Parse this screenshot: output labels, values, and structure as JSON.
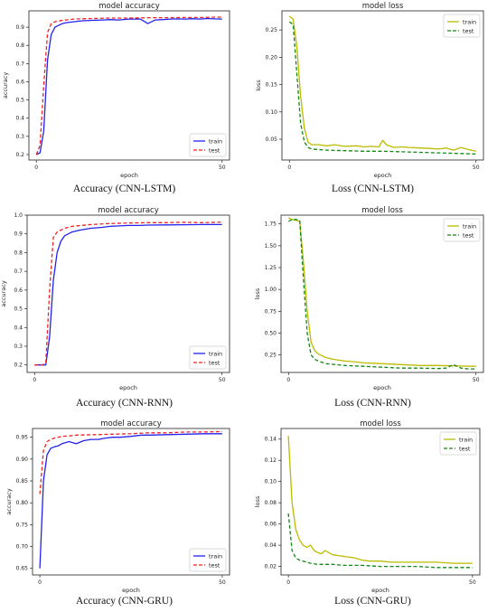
{
  "colors": {
    "train_acc": "#2222ee",
    "test_acc": "#ee2222",
    "train_loss": "#bbbb00",
    "test_loss": "#118811"
  },
  "chart_data": [
    {
      "type": "line",
      "title": "model accuracy",
      "xlabel": "epoch",
      "ylabel": "accuracy",
      "caption": "Accuracy (CNN-LSTM)",
      "xlim": [
        -2,
        52
      ],
      "ylim": [
        0.17,
        0.99
      ],
      "xticks": [
        0,
        50
      ],
      "xtick_labels": [
        "0",
        "50"
      ],
      "yticks": [
        0.2,
        0.3,
        0.4,
        0.5,
        0.6,
        0.7,
        0.8,
        0.9
      ],
      "ytick_labels": [
        "0.2",
        "0.3",
        "0.4",
        "0.5",
        "0.6",
        "0.7",
        "0.8",
        "0.9"
      ],
      "legend": "lower-right",
      "series": [
        {
          "name": "train",
          "style": "solid",
          "color": "#2222ee",
          "x": [
            0,
            1,
            2,
            3,
            4,
            5,
            6,
            7,
            8,
            10,
            12,
            15,
            18,
            20,
            22,
            25,
            28,
            30,
            32,
            34,
            36,
            38,
            40,
            42,
            44,
            46,
            48,
            50
          ],
          "y": [
            0.2,
            0.21,
            0.33,
            0.72,
            0.86,
            0.9,
            0.91,
            0.92,
            0.925,
            0.93,
            0.935,
            0.938,
            0.94,
            0.942,
            0.94,
            0.945,
            0.945,
            0.92,
            0.94,
            0.942,
            0.945,
            0.946,
            0.945,
            0.947,
            0.945,
            0.948,
            0.946,
            0.945
          ]
        },
        {
          "name": "test",
          "style": "dashed",
          "color": "#ee2222",
          "x": [
            0,
            1,
            2,
            3,
            4,
            5,
            6,
            8,
            10,
            15,
            20,
            25,
            30,
            35,
            40,
            45,
            48,
            50
          ],
          "y": [
            0.2,
            0.25,
            0.58,
            0.87,
            0.92,
            0.93,
            0.935,
            0.94,
            0.945,
            0.948,
            0.95,
            0.95,
            0.952,
            0.952,
            0.953,
            0.953,
            0.955,
            0.955
          ]
        }
      ]
    },
    {
      "type": "line",
      "title": "model loss",
      "xlabel": "epoch",
      "ylabel": "loss",
      "caption": "Loss (CNN-LSTM)",
      "xlim": [
        -2,
        52
      ],
      "ylim": [
        0.012,
        0.285
      ],
      "xticks": [
        0,
        50
      ],
      "xtick_labels": [
        "0",
        "50"
      ],
      "yticks": [
        0.05,
        0.1,
        0.15,
        0.2,
        0.25
      ],
      "ytick_labels": [
        "0.05",
        "0.10",
        "0.15",
        "0.20",
        "0.25"
      ],
      "legend": "top-right",
      "series": [
        {
          "name": "train",
          "style": "solid",
          "color": "#bbbb00",
          "x": [
            0,
            1,
            2,
            3,
            4,
            5,
            6,
            8,
            10,
            12,
            15,
            18,
            20,
            22,
            24,
            25,
            26,
            28,
            30,
            32,
            35,
            38,
            40,
            42,
            44,
            46,
            48,
            50
          ],
          "y": [
            0.275,
            0.27,
            0.22,
            0.13,
            0.07,
            0.045,
            0.04,
            0.04,
            0.038,
            0.04,
            0.037,
            0.038,
            0.036,
            0.037,
            0.036,
            0.048,
            0.04,
            0.035,
            0.036,
            0.035,
            0.034,
            0.033,
            0.032,
            0.034,
            0.03,
            0.035,
            0.031,
            0.028
          ]
        },
        {
          "name": "test",
          "style": "dashed",
          "color": "#118811",
          "x": [
            0,
            1,
            2,
            3,
            4,
            5,
            6,
            8,
            10,
            15,
            20,
            25,
            30,
            35,
            40,
            45,
            50
          ],
          "y": [
            0.265,
            0.26,
            0.17,
            0.08,
            0.045,
            0.035,
            0.032,
            0.031,
            0.03,
            0.029,
            0.028,
            0.028,
            0.027,
            0.026,
            0.025,
            0.024,
            0.023
          ]
        }
      ]
    },
    {
      "type": "line",
      "title": "model accuracy",
      "xlabel": "epoch",
      "ylabel": "accuracy",
      "caption": "Accuracy (CNN-RNN)",
      "xlim": [
        -2,
        52
      ],
      "ylim": [
        0.16,
        1.0
      ],
      "xticks": [
        0,
        50
      ],
      "xtick_labels": [
        "0",
        "50"
      ],
      "yticks": [
        0.2,
        0.3,
        0.4,
        0.5,
        0.6,
        0.7,
        0.8,
        0.9,
        1.0
      ],
      "ytick_labels": [
        "0.2",
        "0.3",
        "0.4",
        "0.5",
        "0.6",
        "0.7",
        "0.8",
        "0.9",
        "1.0"
      ],
      "legend": "lower-right",
      "series": [
        {
          "name": "train",
          "style": "solid",
          "color": "#2222ee",
          "x": [
            0,
            1,
            2,
            3,
            4,
            5,
            6,
            7,
            8,
            10,
            12,
            15,
            18,
            20,
            22,
            25,
            28,
            30,
            35,
            40,
            45,
            48,
            50
          ],
          "y": [
            0.2,
            0.2,
            0.2,
            0.2,
            0.35,
            0.65,
            0.8,
            0.86,
            0.89,
            0.91,
            0.92,
            0.93,
            0.935,
            0.94,
            0.942,
            0.945,
            0.945,
            0.947,
            0.948,
            0.949,
            0.95,
            0.95,
            0.95
          ]
        },
        {
          "name": "test",
          "style": "dashed",
          "color": "#ee2222",
          "x": [
            0,
            1,
            2,
            3,
            4,
            5,
            6,
            7,
            8,
            10,
            15,
            20,
            25,
            30,
            35,
            40,
            45,
            50
          ],
          "y": [
            0.2,
            0.2,
            0.2,
            0.21,
            0.6,
            0.88,
            0.91,
            0.92,
            0.93,
            0.94,
            0.95,
            0.955,
            0.958,
            0.96,
            0.96,
            0.962,
            0.96,
            0.963
          ]
        }
      ]
    },
    {
      "type": "line",
      "title": "model loss",
      "xlabel": "epoch",
      "ylabel": "loss",
      "caption": "Loss (CNN-RNN)",
      "xlim": [
        -2,
        52
      ],
      "ylim": [
        0.05,
        1.85
      ],
      "xticks": [
        0,
        50
      ],
      "xtick_labels": [
        "0",
        "50"
      ],
      "yticks": [
        0.25,
        0.5,
        0.75,
        1.0,
        1.25,
        1.5,
        1.75
      ],
      "ytick_labels": [
        "0.25",
        "0.50",
        "0.75",
        "1.00",
        "1.25",
        "1.50",
        "1.75"
      ],
      "legend": "top-right",
      "series": [
        {
          "name": "train",
          "style": "solid",
          "color": "#bbbb00",
          "x": [
            0,
            1,
            2,
            3,
            4,
            5,
            6,
            7,
            8,
            10,
            12,
            15,
            18,
            20,
            25,
            30,
            35,
            40,
            45,
            50
          ],
          "y": [
            1.82,
            1.8,
            1.79,
            1.78,
            1.3,
            0.75,
            0.4,
            0.3,
            0.26,
            0.22,
            0.2,
            0.18,
            0.17,
            0.16,
            0.15,
            0.14,
            0.13,
            0.13,
            0.125,
            0.12
          ]
        },
        {
          "name": "test",
          "style": "dashed",
          "color": "#118811",
          "x": [
            0,
            1,
            2,
            3,
            4,
            5,
            6,
            7,
            8,
            10,
            15,
            20,
            25,
            30,
            35,
            40,
            42,
            44,
            46,
            48,
            50
          ],
          "y": [
            1.78,
            1.8,
            1.8,
            1.79,
            1.1,
            0.5,
            0.25,
            0.2,
            0.18,
            0.15,
            0.13,
            0.12,
            0.11,
            0.1,
            0.1,
            0.095,
            0.1,
            0.14,
            0.1,
            0.09,
            0.09
          ]
        }
      ]
    },
    {
      "type": "line",
      "title": "model accuracy",
      "xlabel": "epoch",
      "ylabel": "accuracy",
      "caption": "Accuracy (CNN-GRU)",
      "xlim": [
        -2,
        52
      ],
      "ylim": [
        0.635,
        0.97
      ],
      "xticks": [
        0,
        50
      ],
      "xtick_labels": [
        "0",
        "50"
      ],
      "yticks": [
        0.65,
        0.7,
        0.75,
        0.8,
        0.85,
        0.9,
        0.95
      ],
      "ytick_labels": [
        "0.65",
        "0.70",
        "0.75",
        "0.80",
        "0.85",
        "0.90",
        "0.95"
      ],
      "legend": "lower-right",
      "series": [
        {
          "name": "train",
          "style": "solid",
          "color": "#2222ee",
          "x": [
            0,
            1,
            2,
            3,
            4,
            5,
            6,
            8,
            10,
            12,
            14,
            16,
            18,
            20,
            22,
            25,
            28,
            30,
            35,
            40,
            45,
            50
          ],
          "y": [
            0.65,
            0.85,
            0.91,
            0.925,
            0.928,
            0.93,
            0.935,
            0.94,
            0.935,
            0.942,
            0.945,
            0.945,
            0.948,
            0.95,
            0.95,
            0.952,
            0.955,
            0.955,
            0.956,
            0.957,
            0.958,
            0.958
          ]
        },
        {
          "name": "test",
          "style": "dashed",
          "color": "#ee2222",
          "x": [
            0,
            1,
            2,
            3,
            4,
            5,
            6,
            8,
            10,
            15,
            20,
            25,
            30,
            35,
            40,
            45,
            50
          ],
          "y": [
            0.82,
            0.92,
            0.94,
            0.945,
            0.948,
            0.95,
            0.952,
            0.953,
            0.955,
            0.956,
            0.957,
            0.958,
            0.96,
            0.96,
            0.962,
            0.962,
            0.963
          ]
        }
      ]
    },
    {
      "type": "line",
      "title": "model loss",
      "xlabel": "epoch",
      "ylabel": "loss",
      "caption": "Loss (CNN-GRU)",
      "xlim": [
        -2,
        52
      ],
      "ylim": [
        0.012,
        0.15
      ],
      "xticks": [
        0,
        50
      ],
      "xtick_labels": [
        "0",
        "50"
      ],
      "yticks": [
        0.02,
        0.04,
        0.06,
        0.08,
        0.1,
        0.12,
        0.14
      ],
      "ytick_labels": [
        "0.02",
        "0.04",
        "0.06",
        "0.08",
        "0.10",
        "0.12",
        "0.14"
      ],
      "legend": "top-right",
      "series": [
        {
          "name": "train",
          "style": "solid",
          "color": "#bbbb00",
          "x": [
            0,
            1,
            2,
            3,
            4,
            5,
            6,
            7,
            8,
            9,
            10,
            12,
            14,
            16,
            18,
            20,
            22,
            25,
            28,
            30,
            35,
            40,
            45,
            50
          ],
          "y": [
            0.143,
            0.08,
            0.055,
            0.045,
            0.04,
            0.038,
            0.04,
            0.035,
            0.033,
            0.032,
            0.035,
            0.031,
            0.03,
            0.029,
            0.028,
            0.026,
            0.025,
            0.025,
            0.024,
            0.024,
            0.024,
            0.024,
            0.023,
            0.023
          ]
        },
        {
          "name": "test",
          "style": "dashed",
          "color": "#118811",
          "x": [
            0,
            1,
            2,
            3,
            4,
            5,
            6,
            8,
            10,
            12,
            15,
            20,
            25,
            30,
            35,
            40,
            45,
            50
          ],
          "y": [
            0.07,
            0.035,
            0.028,
            0.026,
            0.025,
            0.024,
            0.023,
            0.022,
            0.022,
            0.022,
            0.021,
            0.021,
            0.02,
            0.02,
            0.02,
            0.019,
            0.019,
            0.019
          ]
        }
      ]
    }
  ]
}
